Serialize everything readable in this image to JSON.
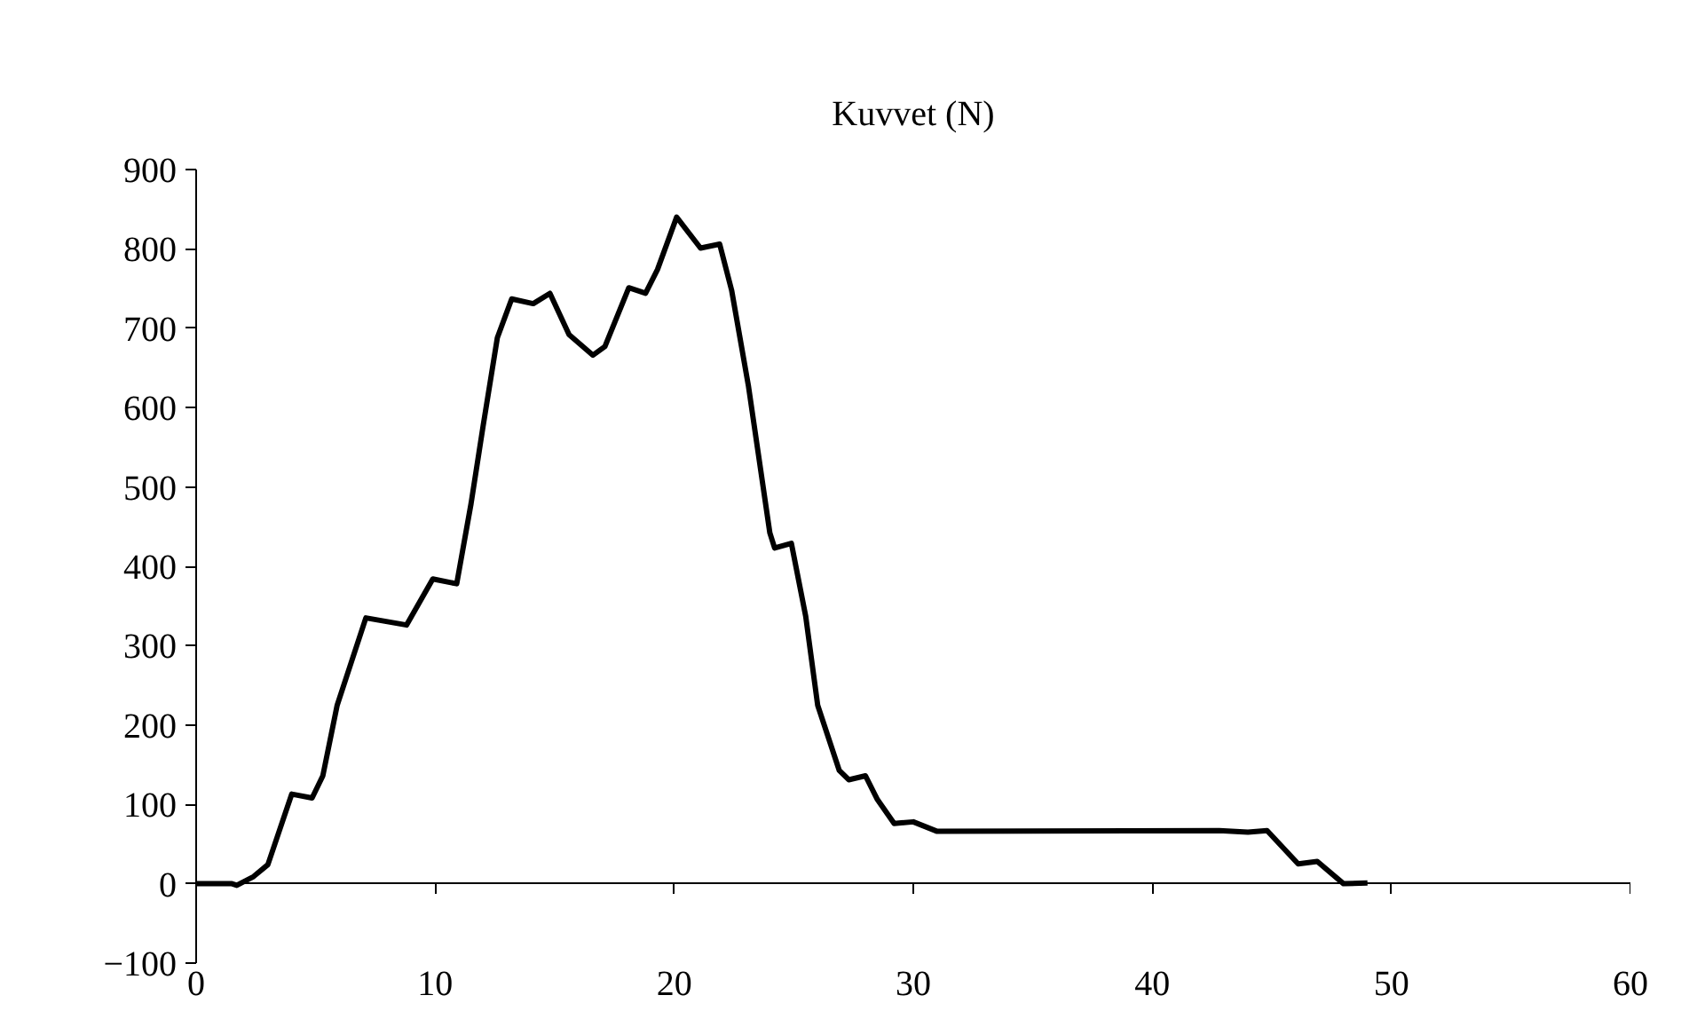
{
  "chart_data": {
    "type": "line",
    "title": "Kuvvet (N)",
    "x": [
      0,
      1.5,
      1.7,
      2.4,
      3.0,
      4.0,
      4.85,
      5.3,
      5.9,
      7.1,
      8.8,
      9.9,
      10.9,
      11.5,
      12.0,
      12.6,
      13.2,
      14.1,
      14.8,
      15.6,
      16.6,
      17.1,
      18.1,
      18.8,
      19.3,
      20.1,
      21.1,
      21.9,
      22.4,
      23.1,
      24.0,
      24.2,
      24.9,
      25.5,
      26.0,
      26.9,
      27.3,
      28.0,
      28.5,
      29.2,
      30.0,
      31.0,
      42.8,
      44.0,
      44.8,
      46.1,
      46.9,
      48.0,
      49.0
    ],
    "series": [
      {
        "color": "#000000",
        "values": [
          0,
          0,
          -2,
          9,
          24,
          113,
          108,
          136,
          225,
          335,
          326,
          384,
          378,
          479,
          576,
          688,
          737,
          731,
          744,
          692,
          666,
          677,
          751,
          744,
          774,
          840,
          801,
          806,
          748,
          628,
          442,
          423,
          429,
          337,
          225,
          143,
          131,
          136,
          106,
          76,
          78,
          66,
          67,
          65,
          67,
          25,
          28,
          0,
          1
        ]
      }
    ],
    "xlim": [
      0,
      60
    ],
    "ylim": [
      -100,
      900
    ],
    "xticks": [
      0,
      10,
      20,
      30,
      40,
      50,
      60
    ],
    "yticks": [
      -100,
      0,
      100,
      200,
      300,
      400,
      500,
      600,
      700,
      800,
      900
    ],
    "grid": false,
    "marker": "none",
    "line_style": "solid"
  }
}
